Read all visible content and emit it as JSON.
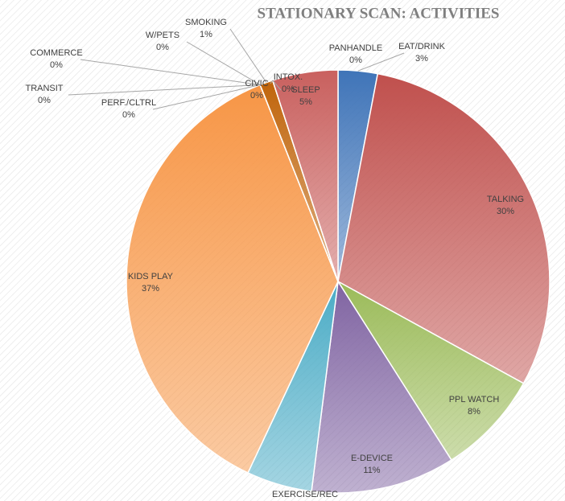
{
  "chart_data": {
    "type": "pie",
    "title": "STATIONARY SCAN: ACTIVITIES",
    "categories": [
      "PANHANDLE",
      "EAT/DRINK",
      "TALKING",
      "PPL WATCH",
      "E-DEVICE",
      "EXERCISE/REC",
      "KIDS PLAY",
      "TRANSIT",
      "PERF./CLTRL",
      "COMMERCE",
      "W/PETS",
      "SMOKING",
      "CIVIC",
      "INTOX.",
      "SLEEP"
    ],
    "values": [
      0,
      3,
      30,
      8,
      11,
      5,
      37,
      0,
      0,
      0,
      0,
      1,
      0,
      0,
      5
    ],
    "value_labels": [
      "0%",
      "3%",
      "30%",
      "8%",
      "11%",
      null,
      "37%",
      "0%",
      "0%",
      "0%",
      "0%",
      "1%",
      "0%",
      "0%",
      "5%"
    ],
    "colors": [
      "#3d6eb4",
      "#3f74b8",
      "#c0504d",
      "#9bbb59",
      "#8064a2",
      "#4bacc6",
      "#f79646",
      "#7f7f7f",
      "#7f7f7f",
      "#7f7f7f",
      "#7f7f7f",
      "#c0640a",
      "#7f7f7f",
      "#7f7f7f",
      "#c9605e"
    ]
  }
}
